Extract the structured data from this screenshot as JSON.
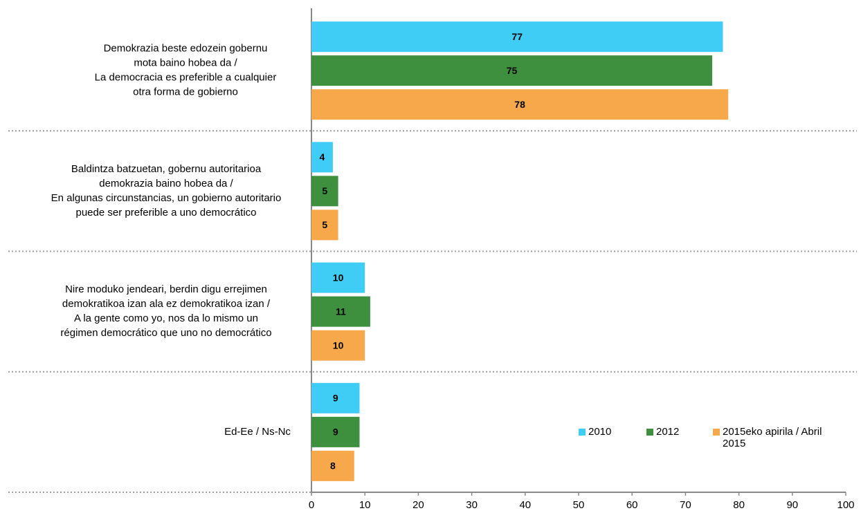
{
  "chart_data": {
    "type": "hbar",
    "categories": [
      [
        "Demokrazia beste edozein gobernu",
        "mota baino hobea da /",
        "La democracia es preferible a cualquier",
        "otra forma de gobierno"
      ],
      [
        "Baldintza batzuetan, gobernu autoritarioa",
        "demokrazia baino hobea da /",
        "En algunas circunstancias, un gobierno autoritario",
        "puede ser preferible a uno democrático"
      ],
      [
        "Nire moduko jendeari, berdin digu errejimen",
        "demokratikoa izan ala ez demokratikoa izan /",
        "A la gente como yo, nos da lo mismo un",
        "régimen democrático que uno no democrático"
      ],
      [
        "Ed-Ee / Ns-Nc"
      ]
    ],
    "series": [
      {
        "name": "2010",
        "color": "#3fcdf5",
        "values": [
          77,
          4,
          10,
          9
        ]
      },
      {
        "name": "2012",
        "color": "#3e8f3e",
        "values": [
          75,
          5,
          11,
          9
        ]
      },
      {
        "name": "2015eko apirila / Abril 2015",
        "color": "#f7a84a",
        "values": [
          78,
          5,
          10,
          8
        ]
      }
    ],
    "xlim": [
      0,
      100
    ],
    "xticks": [
      0,
      10,
      20,
      30,
      40,
      50,
      60,
      70,
      80,
      90,
      100
    ]
  }
}
